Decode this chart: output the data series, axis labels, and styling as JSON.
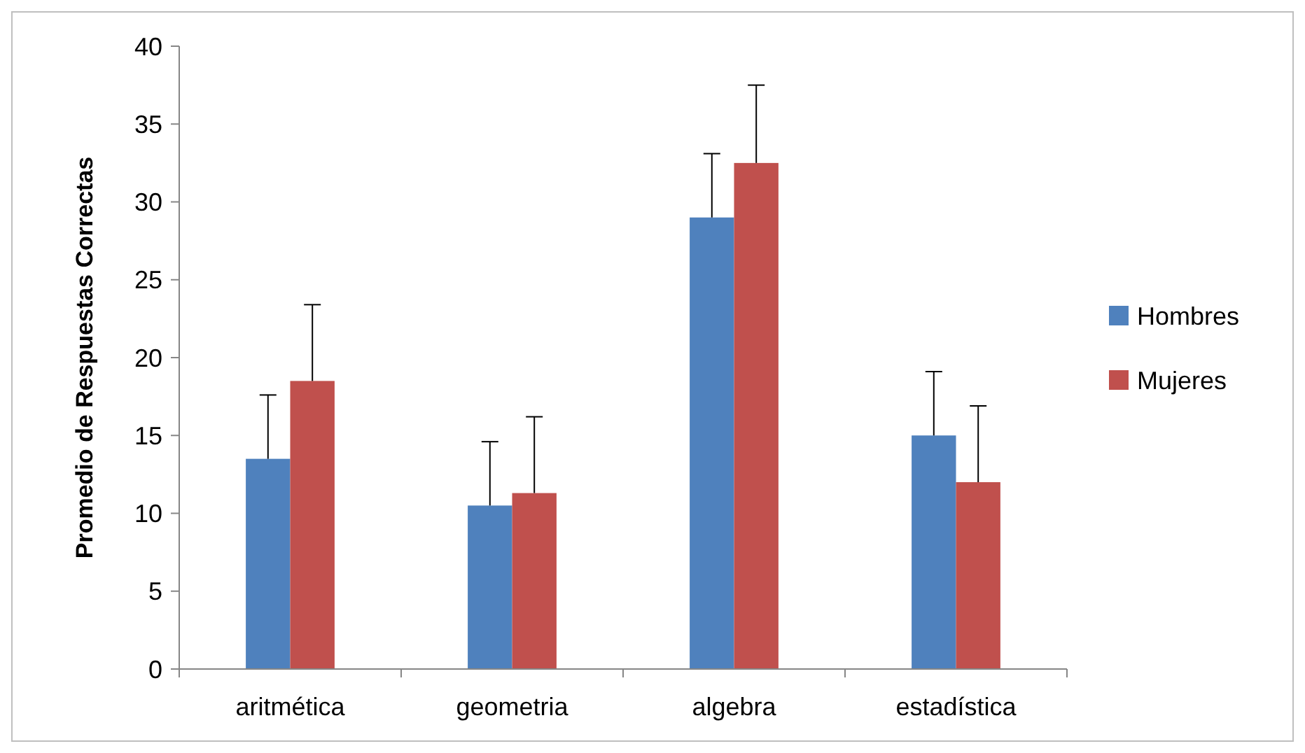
{
  "chart_data": {
    "type": "bar",
    "ylabel": "Promedio de Respuestas Correctas",
    "categories": [
      "aritmética",
      "geometria",
      "algebra",
      "estadística"
    ],
    "series": [
      {
        "name": "Hombres",
        "color": "#4f81bd",
        "values": [
          13.5,
          10.5,
          29,
          15
        ],
        "errors": [
          [
            13.5,
            17.6
          ],
          [
            10.5,
            14.6
          ],
          [
            29,
            33.1
          ],
          [
            15,
            19.1
          ]
        ]
      },
      {
        "name": "Mujeres",
        "color": "#c0504d",
        "values": [
          18.5,
          11.3,
          32.5,
          12
        ],
        "errors": [
          [
            18.5,
            23.4
          ],
          [
            11.3,
            16.2
          ],
          [
            32.5,
            37.5
          ],
          [
            12,
            16.9
          ]
        ]
      }
    ],
    "ylim": [
      0,
      40
    ],
    "yticks": [
      0,
      5,
      10,
      15,
      20,
      25,
      30,
      35,
      40
    ],
    "grid": false,
    "legend": "right"
  }
}
